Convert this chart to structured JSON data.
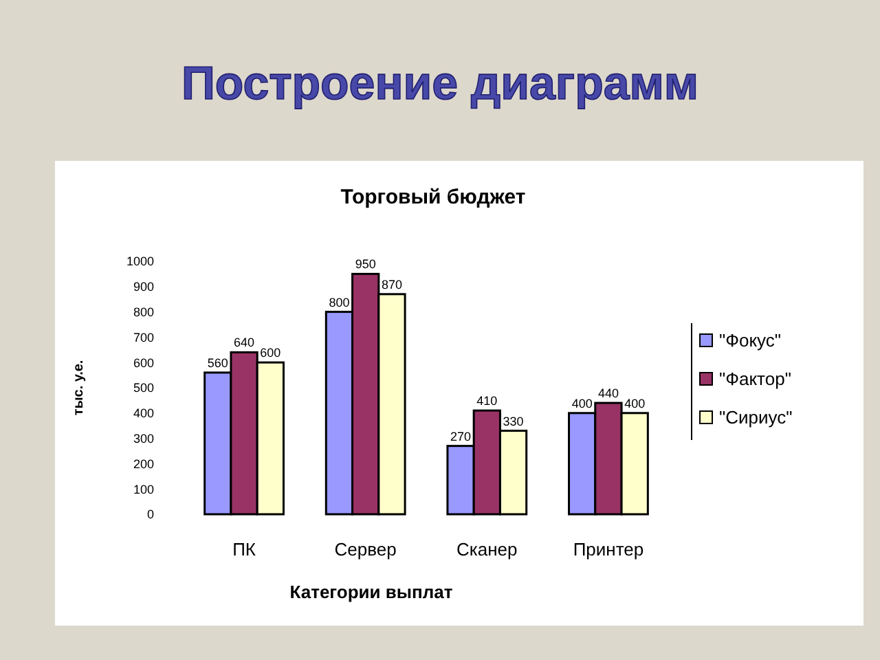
{
  "chart_data": {
    "type": "bar",
    "title": "Построение диаграмм",
    "subtitle": "Торговый бюджет",
    "xlabel": "Категории выплат",
    "ylabel": "тыс. у.е.",
    "categories": [
      "ПК",
      "Сервер",
      "Сканер",
      "Принтер"
    ],
    "series": [
      {
        "name": "\"Фокус\"",
        "color": "#9999ff",
        "values": [
          560,
          800,
          270,
          400
        ]
      },
      {
        "name": "\"Фактор\"",
        "color": "#993366",
        "values": [
          640,
          950,
          410,
          440
        ]
      },
      {
        "name": "\"Сириус\"",
        "color": "#ffffcc",
        "values": [
          600,
          870,
          330,
          400
        ]
      }
    ],
    "ylim": [
      0,
      1000
    ],
    "yticks": [
      0,
      100,
      200,
      300,
      400,
      500,
      600,
      700,
      800,
      900,
      1000
    ],
    "grid": false,
    "legend": "right",
    "data_labels": true
  }
}
